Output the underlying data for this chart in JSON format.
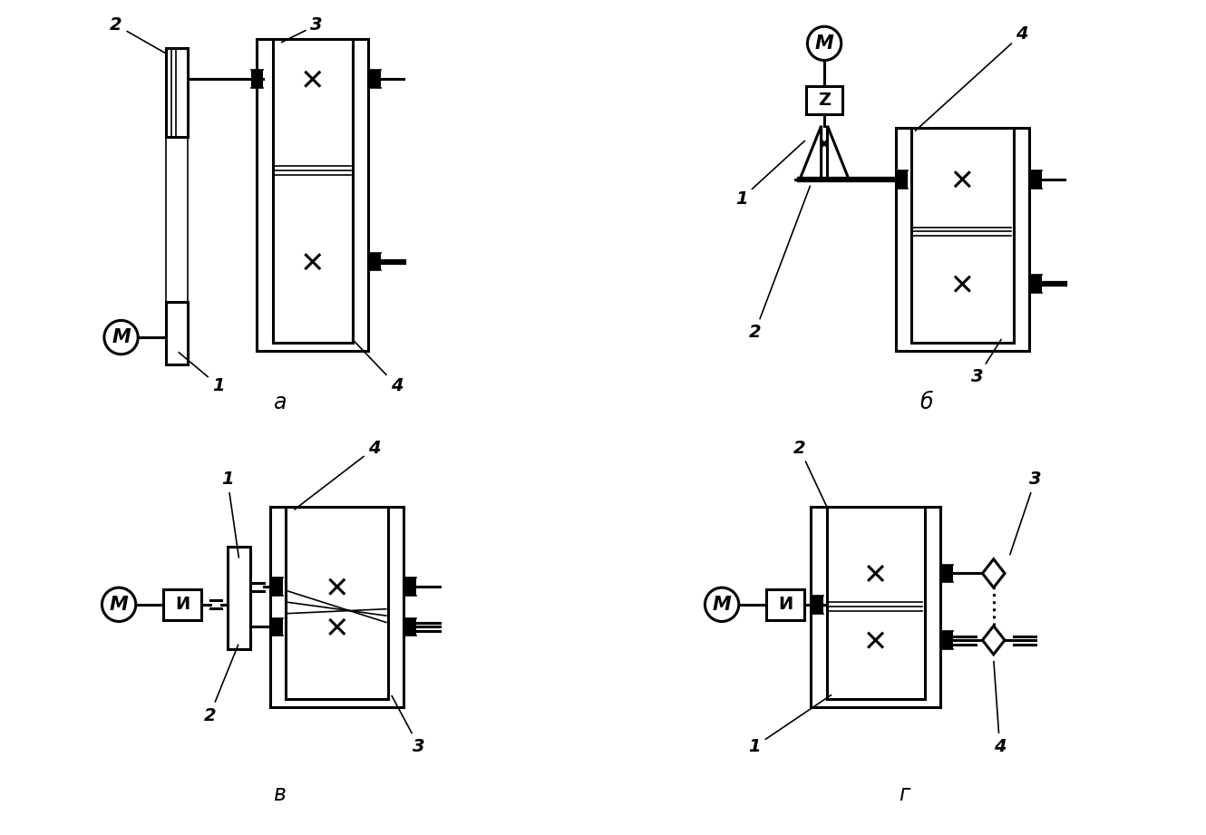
{
  "bg_color": "#ffffff",
  "lc": "#000000",
  "lw": 2.2,
  "lw_thin": 1.2,
  "lw_thick": 4.5,
  "labels": {
    "a": "а",
    "b": "б",
    "v": "в",
    "g": "г"
  }
}
